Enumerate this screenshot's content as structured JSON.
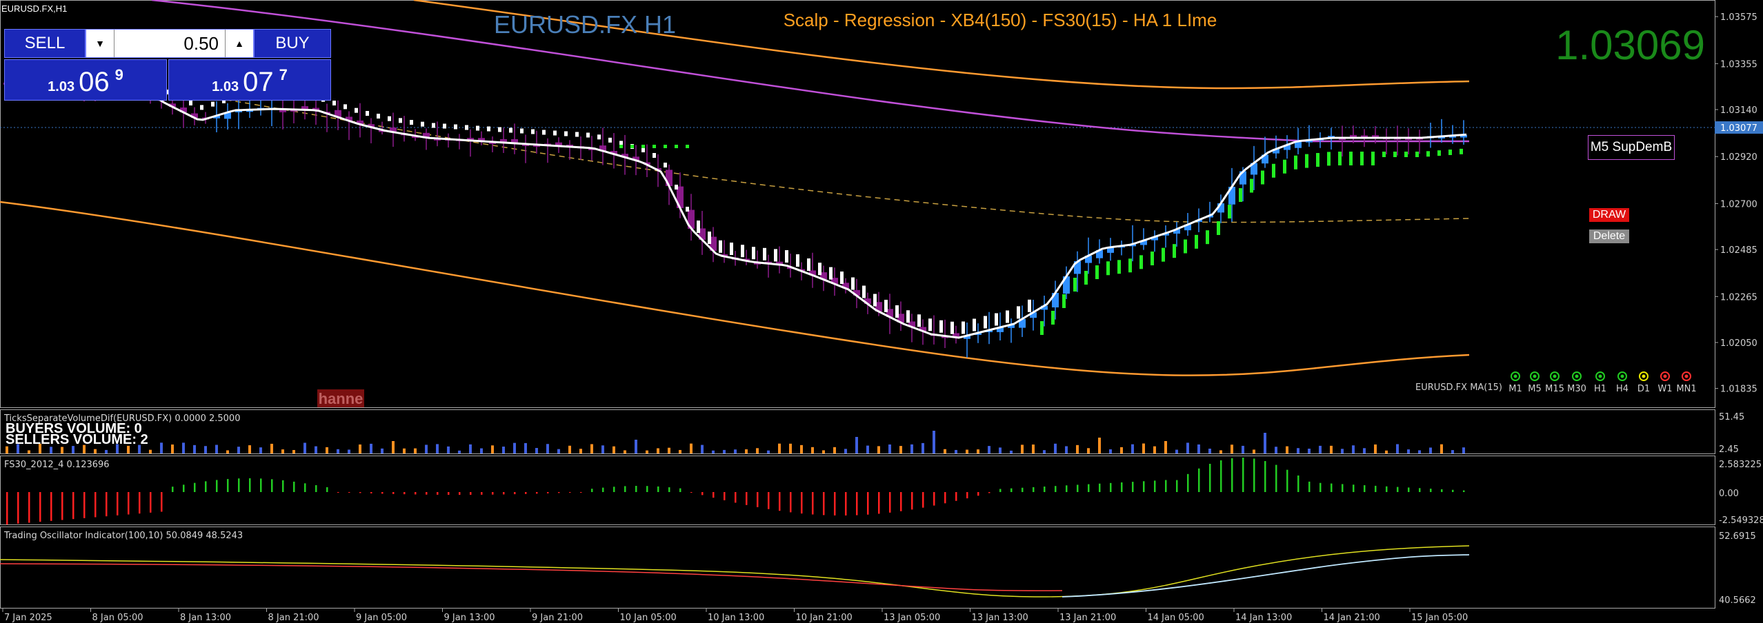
{
  "window": {
    "symbol_period": "EURUSD.FX,H1"
  },
  "header": {
    "symbol_label": "EURUSD.FX H1",
    "strategy_label": "Scalp - Regression - XB4(150) - FS30(15) - HA  1 LIme",
    "last_price": "1.03069"
  },
  "trade_panel": {
    "sell_label": "SELL",
    "buy_label": "BUY",
    "lot_value": "0.50",
    "bid": {
      "big": "1.03",
      "pips": "06",
      "point": "9"
    },
    "ask": {
      "big": "1.03",
      "pips": "07",
      "point": "7"
    }
  },
  "buttons": {
    "supdem": "M5 SupDemB",
    "draw": "DRAW",
    "delete": "Delete"
  },
  "watermark": "hanne",
  "ma_label": "EURUSD.FX MA(15)",
  "timeframes": [
    {
      "label": "M1",
      "color": "#22cc22"
    },
    {
      "label": "M5",
      "color": "#22cc22"
    },
    {
      "label": "M15",
      "color": "#22cc22"
    },
    {
      "label": "M30",
      "color": "#22cc22"
    },
    {
      "label": "H1",
      "color": "#22cc22"
    },
    {
      "label": "H4",
      "color": "#22cc22"
    },
    {
      "label": "D1",
      "color": "#e8e800"
    },
    {
      "label": "W1",
      "color": "#ff3030"
    },
    {
      "label": "MN1",
      "color": "#ff3030"
    }
  ],
  "colors": {
    "bull": "#2f8fff",
    "bear": "#8a1a8a",
    "ma": "#ffffff",
    "regression": "#c050d8",
    "channel": "#ff9a30",
    "dashed": "#c8a040",
    "signal_green": "#22ee22",
    "signal_white": "#ffffff",
    "current_price_line": "#3a78c8",
    "vol_buy": "#4060e0",
    "vol_sell": "#ff9020",
    "fs_pos": "#22cc22",
    "fs_neg": "#ff2020",
    "osc_a": "#e0e020",
    "osc_b": "#ff4040",
    "osc_c": "#c0e8ff"
  },
  "chart_data": [
    {
      "type": "candlestick",
      "title": "EURUSD.FX H1",
      "x_ticks": [
        "7 Jan 2025",
        "8 Jan 05:00",
        "8 Jan 13:00",
        "8 Jan 21:00",
        "9 Jan 05:00",
        "9 Jan 13:00",
        "9 Jan 21:00",
        "10 Jan 05:00",
        "10 Jan 13:00",
        "10 Jan 21:00",
        "13 Jan 05:00",
        "13 Jan 13:00",
        "13 Jan 21:00",
        "14 Jan 05:00",
        "14 Jan 13:00",
        "14 Jan 21:00",
        "15 Jan 05:00"
      ],
      "y_ticks": [
        "1.03575",
        "1.03355",
        "1.03140",
        "1.02920",
        "1.02700",
        "1.02485",
        "1.02265",
        "1.02050",
        "1.01835"
      ],
      "ylim": [
        1.0175,
        1.0364
      ],
      "current_price": "1.03077",
      "ma_label": "EURUSD.FX MA(15)"
    },
    {
      "type": "bar",
      "title": "TicksSeparateVolumeDif(EURUSD.FX) 0.0000 2.5000",
      "annotations": [
        "BUYERS VOLUME: 0",
        "SELLERS VOLUME: 2"
      ],
      "y_ticks": [
        "51.45",
        "2.45"
      ]
    },
    {
      "type": "bar",
      "title": "FS30_2012_4 0.123696",
      "y_ticks": [
        "2.583225",
        "0.00",
        "-2.549328"
      ]
    },
    {
      "type": "line",
      "title": "Trading Oscillator Indicator(100,10) 50.0849 48.5243",
      "y_ticks": [
        "52.6915",
        "40.5662"
      ]
    }
  ]
}
